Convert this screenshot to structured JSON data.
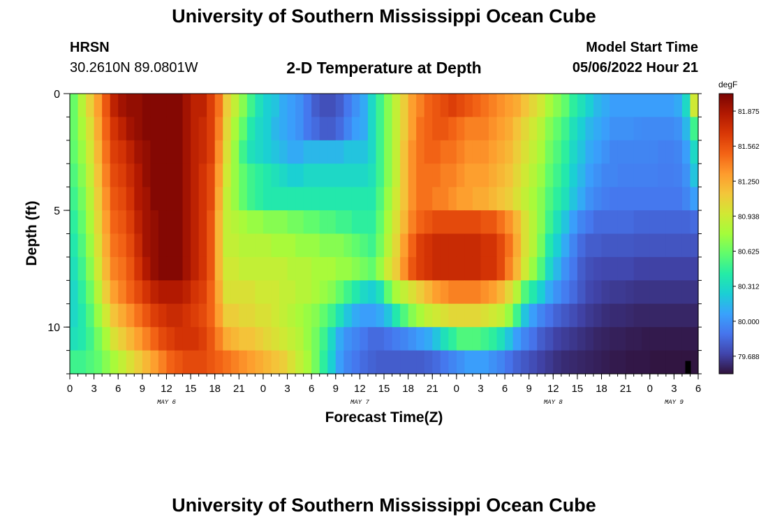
{
  "header": {
    "title": "University of Southern Mississippi Ocean Cube",
    "station": "HRSN",
    "coords": "30.2610N  89.0801W",
    "subtitle": "2-D Temperature at Depth",
    "start_label": "Model Start Time",
    "start_value": "05/06/2022 Hour 21"
  },
  "footer": {
    "title": "University of Southern Mississippi Ocean Cube"
  },
  "colors": {
    "scale": [
      "#30123b",
      "#4145ab",
      "#4675ed",
      "#39a2fc",
      "#1bcfd4",
      "#24eca6",
      "#61fc6c",
      "#a4fc3b",
      "#d1e834",
      "#f3c63a",
      "#fe9b2d",
      "#f36315",
      "#d93806",
      "#b11901",
      "#7a0403"
    ],
    "marker": "#000000"
  },
  "chart_data": {
    "type": "heatmap",
    "title": "2-D Temperature at Depth",
    "xlabel": "Forecast Time(Z)",
    "ylabel": "Depth (ft)",
    "unit": "degF",
    "xlim": [
      0,
      78
    ],
    "ylim": [
      0,
      12
    ],
    "x_ticks": [
      0,
      3,
      6,
      9,
      12,
      15,
      18,
      21,
      24,
      27,
      30,
      33,
      36,
      39,
      42,
      45,
      48,
      51,
      54,
      57,
      60,
      63,
      66,
      69,
      72,
      75,
      78
    ],
    "x_tick_labels": [
      "0",
      "3",
      "6",
      "9",
      "12",
      "15",
      "18",
      "21",
      "0",
      "3",
      "6",
      "9",
      "12",
      "15",
      "18",
      "21",
      "0",
      "3",
      "6",
      "9",
      "12",
      "15",
      "18",
      "21",
      "0",
      "3",
      "6"
    ],
    "day_labels": [
      {
        "label": "MAY 6",
        "x": 12
      },
      {
        "label": "MAY 7",
        "x": 36
      },
      {
        "label": "MAY 8",
        "x": 60
      },
      {
        "label": "MAY 9",
        "x": 75
      }
    ],
    "y_ticks": [
      0,
      5,
      10
    ],
    "y_tick_labels": [
      "0",
      "5",
      "10"
    ],
    "colorbar": {
      "label": "degF",
      "min": 79.531,
      "max": 82.031,
      "tick_values": [
        81.875,
        81.562,
        81.25,
        80.938,
        80.625,
        80.312,
        80.0,
        79.688
      ],
      "tick_labels": [
        "81.875",
        "81.562",
        "81.250",
        "80.938",
        "80.625",
        "80.312",
        "80.000",
        "79.688"
      ]
    },
    "grid": {
      "x_step": 1,
      "y_step": 1,
      "x": [
        0,
        1,
        2,
        3,
        4,
        5,
        6,
        7,
        8,
        9,
        10,
        11,
        12,
        13,
        14,
        15,
        16,
        17,
        18,
        19,
        20,
        21,
        22,
        23,
        24,
        25,
        26,
        27,
        28,
        29,
        30,
        31,
        32,
        33,
        34,
        35,
        36,
        37,
        38,
        39,
        40,
        41,
        42,
        43,
        44,
        45,
        46,
        47,
        48,
        49,
        50,
        51,
        52,
        53,
        54,
        55,
        56,
        57,
        58,
        59,
        60,
        61,
        62,
        63,
        64,
        65,
        66,
        67,
        68,
        69,
        70,
        71,
        72,
        73,
        74,
        75,
        76,
        77
      ],
      "depth": [
        0,
        1,
        2,
        3,
        4,
        5,
        6,
        7,
        8,
        9,
        10,
        11
      ],
      "values": [
        [
          80.62,
          80.85,
          81.08,
          81.3,
          81.55,
          81.8,
          81.9,
          81.95,
          81.95,
          82.0,
          82.0,
          82.0,
          82.0,
          82.0,
          81.9,
          81.8,
          81.8,
          81.65,
          81.45,
          81.1,
          80.9,
          80.7,
          80.5,
          80.35,
          80.25,
          80.2,
          80.1,
          80.05,
          80.0,
          79.9,
          79.8,
          79.75,
          79.75,
          79.8,
          79.9,
          80.0,
          80.1,
          80.3,
          80.5,
          80.7,
          80.9,
          81.1,
          81.3,
          81.4,
          81.5,
          81.55,
          81.6,
          81.65,
          81.6,
          81.55,
          81.5,
          81.45,
          81.4,
          81.35,
          81.3,
          81.25,
          81.15,
          81.05,
          80.95,
          80.8,
          80.7,
          80.6,
          80.45,
          80.35,
          80.25,
          80.15,
          80.1,
          80.05,
          80.05,
          80.05,
          80.05,
          80.05,
          80.05,
          80.05,
          80.05,
          80.1,
          80.3,
          80.95
        ],
        [
          80.62,
          80.8,
          81.0,
          81.25,
          81.5,
          81.7,
          81.8,
          81.9,
          81.95,
          82.0,
          82.0,
          82.0,
          82.0,
          82.0,
          81.9,
          81.8,
          81.75,
          81.65,
          81.4,
          81.05,
          80.8,
          80.6,
          80.4,
          80.3,
          80.25,
          80.15,
          80.1,
          80.05,
          80.0,
          79.9,
          79.85,
          79.8,
          79.8,
          79.85,
          79.95,
          80.05,
          80.1,
          80.3,
          80.5,
          80.7,
          80.9,
          81.1,
          81.3,
          81.45,
          81.5,
          81.55,
          81.55,
          81.5,
          81.45,
          81.4,
          81.4,
          81.4,
          81.35,
          81.3,
          81.25,
          81.15,
          81.05,
          80.95,
          80.85,
          80.7,
          80.6,
          80.5,
          80.35,
          80.25,
          80.15,
          80.1,
          80.05,
          80.0,
          80.0,
          80.0,
          79.98,
          79.97,
          79.97,
          79.97,
          79.97,
          80.0,
          80.15,
          80.5
        ],
        [
          80.6,
          80.75,
          80.95,
          81.2,
          81.45,
          81.65,
          81.7,
          81.8,
          81.9,
          81.95,
          82.0,
          82.0,
          82.0,
          82.0,
          81.9,
          81.8,
          81.75,
          81.65,
          81.35,
          81.0,
          80.75,
          80.5,
          80.35,
          80.3,
          80.25,
          80.2,
          80.15,
          80.1,
          80.1,
          80.15,
          80.15,
          80.15,
          80.15,
          80.15,
          80.2,
          80.2,
          80.2,
          80.3,
          80.5,
          80.7,
          80.9,
          81.15,
          81.35,
          81.45,
          81.5,
          81.5,
          81.45,
          81.45,
          81.4,
          81.35,
          81.35,
          81.35,
          81.3,
          81.25,
          81.2,
          81.1,
          81.0,
          80.9,
          80.8,
          80.65,
          80.55,
          80.45,
          80.3,
          80.2,
          80.1,
          80.05,
          80.0,
          79.95,
          79.95,
          79.95,
          79.95,
          79.95,
          79.95,
          79.93,
          79.93,
          79.95,
          80.05,
          80.3
        ],
        [
          80.55,
          80.7,
          80.9,
          81.15,
          81.4,
          81.6,
          81.65,
          81.75,
          81.85,
          81.95,
          82.0,
          82.0,
          82.0,
          82.0,
          81.9,
          81.8,
          81.7,
          81.6,
          81.3,
          80.95,
          80.75,
          80.6,
          80.5,
          80.45,
          80.4,
          80.35,
          80.3,
          80.25,
          80.25,
          80.3,
          80.3,
          80.3,
          80.3,
          80.3,
          80.3,
          80.3,
          80.3,
          80.35,
          80.5,
          80.7,
          80.9,
          81.15,
          81.35,
          81.45,
          81.45,
          81.45,
          81.4,
          81.4,
          81.35,
          81.3,
          81.3,
          81.3,
          81.25,
          81.2,
          81.15,
          81.05,
          80.95,
          80.85,
          80.75,
          80.6,
          80.5,
          80.4,
          80.25,
          80.15,
          80.05,
          80.0,
          79.95,
          79.95,
          79.93,
          79.93,
          79.93,
          79.93,
          79.93,
          79.92,
          79.92,
          79.93,
          80.0,
          80.2
        ],
        [
          80.5,
          80.65,
          80.85,
          81.1,
          81.35,
          81.55,
          81.6,
          81.7,
          81.85,
          81.9,
          82.0,
          82.0,
          82.0,
          82.0,
          81.9,
          81.8,
          81.7,
          81.6,
          81.25,
          80.9,
          80.75,
          80.6,
          80.5,
          80.45,
          80.4,
          80.4,
          80.4,
          80.4,
          80.4,
          80.4,
          80.4,
          80.4,
          80.4,
          80.4,
          80.4,
          80.4,
          80.4,
          80.4,
          80.55,
          80.75,
          80.95,
          81.15,
          81.35,
          81.45,
          81.45,
          81.4,
          81.4,
          81.35,
          81.3,
          81.3,
          81.25,
          81.25,
          81.2,
          81.15,
          81.1,
          81.0,
          80.9,
          80.8,
          80.7,
          80.55,
          80.45,
          80.35,
          80.2,
          80.1,
          80.0,
          79.95,
          79.92,
          79.9,
          79.9,
          79.9,
          79.9,
          79.9,
          79.9,
          79.9,
          79.9,
          79.9,
          79.95,
          80.05
        ],
        [
          80.45,
          80.6,
          80.8,
          81.05,
          81.3,
          81.5,
          81.55,
          81.65,
          81.8,
          81.9,
          81.95,
          82.0,
          82.0,
          82.0,
          81.9,
          81.8,
          81.7,
          81.55,
          81.2,
          80.9,
          80.85,
          80.8,
          80.75,
          80.75,
          80.7,
          80.7,
          80.7,
          80.65,
          80.65,
          80.6,
          80.6,
          80.55,
          80.55,
          80.5,
          80.5,
          80.45,
          80.45,
          80.45,
          80.6,
          80.8,
          81.0,
          81.2,
          81.4,
          81.5,
          81.55,
          81.6,
          81.6,
          81.6,
          81.6,
          81.6,
          81.6,
          81.55,
          81.55,
          81.45,
          81.35,
          81.2,
          81.0,
          80.85,
          80.7,
          80.5,
          80.35,
          80.2,
          80.05,
          79.95,
          79.9,
          79.85,
          79.85,
          79.85,
          79.85,
          79.85,
          79.83,
          79.83,
          79.83,
          79.83,
          79.83,
          79.83,
          79.83,
          79.85
        ],
        [
          80.4,
          80.55,
          80.75,
          81.0,
          81.25,
          81.45,
          81.5,
          81.6,
          81.75,
          81.9,
          81.95,
          82.0,
          82.0,
          82.0,
          81.9,
          81.8,
          81.7,
          81.55,
          81.2,
          80.9,
          80.9,
          80.85,
          80.85,
          80.85,
          80.85,
          80.8,
          80.8,
          80.8,
          80.75,
          80.75,
          80.75,
          80.7,
          80.7,
          80.7,
          80.65,
          80.6,
          80.55,
          80.5,
          80.65,
          80.85,
          81.05,
          81.3,
          81.5,
          81.65,
          81.7,
          81.75,
          81.75,
          81.75,
          81.75,
          81.75,
          81.75,
          81.7,
          81.7,
          81.6,
          81.45,
          81.25,
          81.0,
          80.85,
          80.65,
          80.4,
          80.25,
          80.1,
          79.95,
          79.85,
          79.8,
          79.8,
          79.78,
          79.78,
          79.78,
          79.78,
          79.77,
          79.77,
          79.77,
          79.77,
          79.77,
          79.77,
          79.77,
          79.77
        ],
        [
          80.35,
          80.5,
          80.7,
          80.95,
          81.2,
          81.4,
          81.45,
          81.55,
          81.7,
          81.85,
          81.95,
          82.0,
          82.0,
          82.0,
          81.9,
          81.8,
          81.7,
          81.55,
          81.2,
          80.95,
          80.95,
          80.9,
          80.9,
          80.9,
          80.9,
          80.9,
          80.9,
          80.85,
          80.85,
          80.85,
          80.8,
          80.8,
          80.8,
          80.75,
          80.75,
          80.7,
          80.65,
          80.6,
          80.75,
          80.95,
          81.1,
          81.35,
          81.55,
          81.65,
          81.7,
          81.75,
          81.75,
          81.75,
          81.75,
          81.75,
          81.75,
          81.7,
          81.7,
          81.6,
          81.4,
          81.2,
          80.95,
          80.75,
          80.55,
          80.3,
          80.15,
          80.0,
          79.9,
          79.8,
          79.75,
          79.73,
          79.72,
          79.72,
          79.72,
          79.72,
          79.7,
          79.7,
          79.7,
          79.7,
          79.7,
          79.7,
          79.7,
          79.7
        ],
        [
          80.3,
          80.45,
          80.62,
          80.85,
          81.1,
          81.3,
          81.4,
          81.5,
          81.6,
          81.7,
          81.8,
          81.85,
          81.85,
          81.85,
          81.8,
          81.7,
          81.65,
          81.5,
          81.25,
          81.0,
          81.0,
          81.0,
          81.0,
          80.95,
          80.95,
          80.95,
          80.9,
          80.9,
          80.85,
          80.85,
          80.8,
          80.75,
          80.7,
          80.6,
          80.5,
          80.4,
          80.3,
          80.25,
          80.35,
          80.6,
          80.8,
          80.9,
          81.0,
          81.1,
          81.2,
          81.3,
          81.35,
          81.4,
          81.4,
          81.4,
          81.4,
          81.35,
          81.3,
          81.2,
          81.05,
          80.85,
          80.55,
          80.4,
          80.25,
          80.1,
          80.0,
          79.92,
          79.85,
          79.78,
          79.72,
          79.7,
          79.68,
          79.67,
          79.67,
          79.66,
          79.65,
          79.65,
          79.65,
          79.65,
          79.65,
          79.65,
          79.65,
          79.65
        ],
        [
          80.3,
          80.4,
          80.55,
          80.75,
          80.95,
          81.15,
          81.25,
          81.35,
          81.45,
          81.55,
          81.65,
          81.7,
          81.75,
          81.75,
          81.7,
          81.65,
          81.6,
          81.5,
          81.3,
          81.1,
          81.1,
          81.05,
          81.05,
          81.0,
          81.0,
          80.95,
          80.9,
          80.85,
          80.8,
          80.75,
          80.7,
          80.6,
          80.5,
          80.35,
          80.2,
          80.1,
          80.05,
          80.05,
          80.1,
          80.2,
          80.4,
          80.55,
          80.7,
          80.8,
          80.9,
          80.95,
          81.0,
          81.05,
          81.05,
          81.05,
          81.05,
          81.0,
          80.95,
          80.9,
          80.75,
          80.5,
          80.2,
          80.05,
          79.95,
          79.88,
          79.82,
          79.78,
          79.74,
          79.7,
          79.67,
          79.65,
          79.63,
          79.62,
          79.62,
          79.61,
          79.6,
          79.6,
          79.6,
          79.6,
          79.6,
          79.6,
          79.6,
          79.6
        ],
        [
          80.35,
          80.4,
          80.5,
          80.65,
          80.8,
          81.0,
          81.1,
          81.2,
          81.3,
          81.4,
          81.5,
          81.6,
          81.65,
          81.7,
          81.7,
          81.7,
          81.65,
          81.55,
          81.4,
          81.25,
          81.2,
          81.15,
          81.15,
          81.1,
          81.05,
          81.0,
          80.95,
          80.9,
          80.85,
          80.75,
          80.65,
          80.5,
          80.3,
          80.1,
          80.0,
          79.95,
          79.9,
          79.85,
          79.85,
          79.88,
          79.92,
          79.95,
          80.0,
          80.05,
          80.1,
          80.2,
          80.35,
          80.45,
          80.55,
          80.55,
          80.55,
          80.5,
          80.45,
          80.35,
          80.2,
          80.05,
          79.95,
          79.88,
          79.8,
          79.75,
          79.7,
          79.68,
          79.66,
          79.64,
          79.62,
          79.6,
          79.59,
          79.58,
          79.58,
          79.57,
          79.57,
          79.56,
          79.56,
          79.56,
          79.56,
          79.56,
          79.56,
          79.56
        ],
        [
          80.5,
          80.5,
          80.55,
          80.6,
          80.7,
          80.8,
          80.9,
          81.0,
          81.1,
          81.2,
          81.3,
          81.4,
          81.5,
          81.55,
          81.6,
          81.6,
          81.6,
          81.55,
          81.5,
          81.45,
          81.4,
          81.35,
          81.3,
          81.25,
          81.2,
          81.15,
          81.1,
          81.0,
          80.9,
          80.8,
          80.65,
          80.45,
          80.25,
          80.05,
          79.95,
          79.9,
          79.85,
          79.82,
          79.8,
          79.8,
          79.8,
          79.8,
          79.8,
          79.8,
          79.82,
          79.85,
          79.9,
          79.95,
          80.0,
          80.05,
          80.05,
          80.05,
          80.0,
          79.95,
          79.88,
          79.82,
          79.78,
          79.74,
          79.7,
          79.67,
          79.64,
          79.62,
          79.61,
          79.6,
          79.59,
          79.58,
          79.57,
          79.56,
          79.56,
          79.55,
          79.55,
          79.55,
          79.54,
          79.54,
          79.54,
          79.54,
          79.54,
          79.54
        ]
      ]
    }
  }
}
